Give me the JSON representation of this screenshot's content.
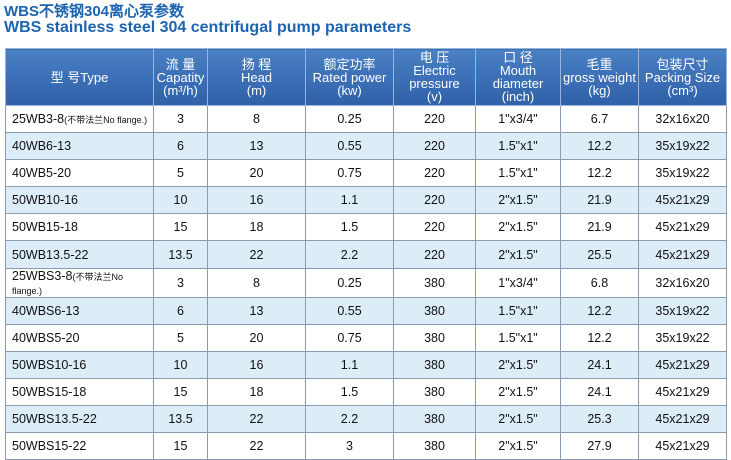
{
  "title": {
    "line1": "WBS不锈钢304离心泵参数",
    "line2": "WBS stainless steel 304 centrifugal pump parameters"
  },
  "table": {
    "header": [
      [
        "型 号Type"
      ],
      [
        "流 量",
        "Capatity",
        "(m³/h)"
      ],
      [
        "扬 程",
        "Head",
        "(m)"
      ],
      [
        "额定功率",
        "Rated power",
        "(kw)"
      ],
      [
        "电 压",
        "Electric pressure",
        "(v)"
      ],
      [
        "口 径",
        "Mouth diameter",
        "(inch)"
      ],
      [
        "毛重",
        "gross weight",
        "(kg)"
      ],
      [
        "包装尺寸",
        "Packing Size",
        "(cm³)"
      ]
    ],
    "rows": [
      [
        [
          "25WB3-8",
          "(不带法兰No flange.)"
        ],
        "3",
        "8",
        "0.25",
        "220",
        "1\"x3/4\"",
        "6.7",
        "32x16x20"
      ],
      [
        [
          "40WB6-13"
        ],
        "6",
        "13",
        "0.55",
        "220",
        "1.5\"x1\"",
        "12.2",
        "35x19x22"
      ],
      [
        [
          "40WB5-20"
        ],
        "5",
        "20",
        "0.75",
        "220",
        "1.5\"x1\"",
        "12.2",
        "35x19x22"
      ],
      [
        [
          "50WB10-16"
        ],
        "10",
        "16",
        "1.1",
        "220",
        "2\"x1.5\"",
        "21.9",
        "45x21x29"
      ],
      [
        [
          "50WB15-18"
        ],
        "15",
        "18",
        "1.5",
        "220",
        "2\"x1.5\"",
        "21.9",
        "45x21x29"
      ],
      [
        [
          "50WB13.5-22"
        ],
        "13.5",
        "22",
        "2.2",
        "220",
        "2\"x1.5\"",
        "25.5",
        "45x21x29"
      ],
      [
        [
          "25WBS3-8",
          "(不带法兰No flange.)"
        ],
        "3",
        "8",
        "0.25",
        "380",
        "1\"x3/4\"",
        "6.8",
        "32x16x20"
      ],
      [
        [
          "40WBS6-13"
        ],
        "6",
        "13",
        "0.55",
        "380",
        "1.5\"x1\"",
        "12.2",
        "35x19x22"
      ],
      [
        [
          "40WBS5-20"
        ],
        "5",
        "20",
        "0.75",
        "380",
        "1.5\"x1\"",
        "12.2",
        "35x19x22"
      ],
      [
        [
          "50WBS10-16"
        ],
        "10",
        "16",
        "1.1",
        "380",
        "2\"x1.5\"",
        "24.1",
        "45x21x29"
      ],
      [
        [
          "50WBS15-18"
        ],
        "15",
        "18",
        "1.5",
        "380",
        "2\"x1.5\"",
        "24.1",
        "45x21x29"
      ],
      [
        [
          "50WBS13.5-22"
        ],
        "13.5",
        "22",
        "2.2",
        "380",
        "2\"x1.5\"",
        "25.3",
        "45x21x29"
      ],
      [
        [
          "50WBS15-22"
        ],
        "15",
        "22",
        "3",
        "380",
        "2\"x1.5\"",
        "27.9",
        "45x21x29"
      ]
    ]
  }
}
